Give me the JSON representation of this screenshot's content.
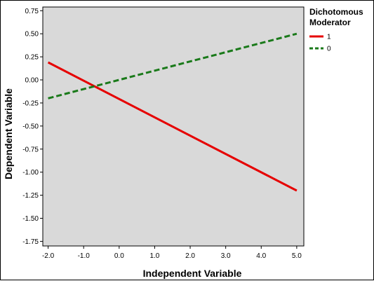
{
  "chart_data": {
    "type": "line",
    "title": "",
    "xlabel": "Independent Variable",
    "ylabel": "Dependent Variable",
    "xlim": [
      -2.15,
      5.2
    ],
    "ylim": [
      -1.8,
      0.79
    ],
    "x_ticks": [
      "-2.0",
      "-1.0",
      "0.0",
      "1.0",
      "2.0",
      "3.0",
      "4.0",
      "5.0"
    ],
    "y_ticks": [
      "0.75",
      "0.50",
      "0.25",
      "0.00",
      "-0.25",
      "-0.50",
      "-0.75",
      "-1.00",
      "-1.25",
      "-1.50",
      "-1.75"
    ],
    "grid": false,
    "plot_background": "#d9d9d9",
    "legend": {
      "title_line1": "Dichotomous",
      "title_line2": "Moderator",
      "position": "right"
    },
    "series": [
      {
        "name": "1",
        "x": [
          -2.0,
          5.0
        ],
        "y": [
          0.19,
          -1.2
        ],
        "color": "#e60000",
        "style": "solid"
      },
      {
        "name": "0",
        "x": [
          -2.0,
          5.0
        ],
        "y": [
          -0.2,
          0.5
        ],
        "color": "#1a7a1a",
        "style": "dashed"
      }
    ]
  }
}
